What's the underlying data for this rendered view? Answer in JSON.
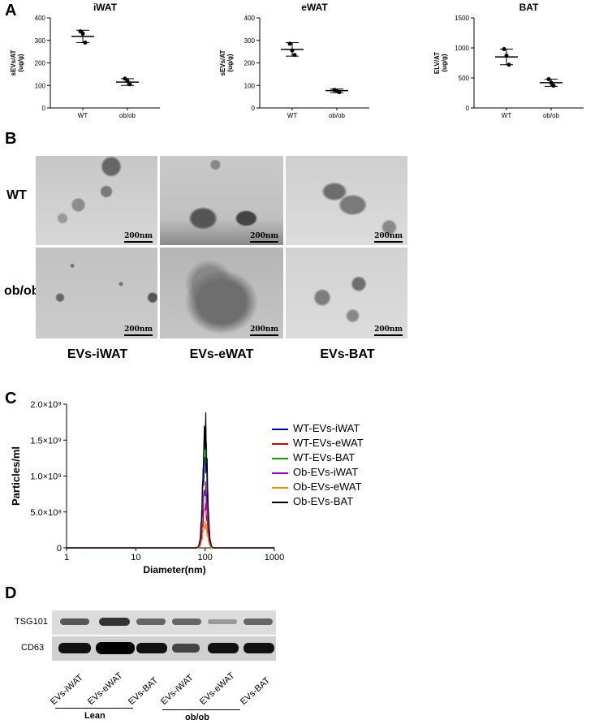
{
  "panels": {
    "a": "A",
    "b": "B",
    "c": "C",
    "d": "D"
  },
  "panel_a": [
    {
      "title": "iWAT",
      "ylabel_line1": "sEVs/AT",
      "ylabel_line2": "(ug/g)",
      "yticks": [
        "0",
        "100",
        "200",
        "300",
        "400"
      ],
      "categories": [
        "WT",
        "ob/ob"
      ]
    },
    {
      "title": "eWAT",
      "ylabel_line1": "sEVs/AT",
      "ylabel_line2": "(ug/g)",
      "yticks": [
        "0",
        "100",
        "200",
        "300",
        "400"
      ],
      "categories": [
        "WT",
        "ob/ob"
      ]
    },
    {
      "title": "BAT",
      "ylabel_line1": "ELV/AT",
      "ylabel_line2": "(ug/g)",
      "yticks": [
        "0",
        "500",
        "1000",
        "1500"
      ],
      "categories": [
        "WT",
        "ob/ob"
      ]
    }
  ],
  "panel_b": {
    "row_labels": [
      "WT",
      "ob/ob"
    ],
    "col_labels": [
      "EVs-iWAT",
      "EVs-eWAT",
      "EVs-BAT"
    ],
    "scale_bar": "200nm"
  },
  "panel_c": {
    "xlabel": "Diameter(nm)",
    "ylabel": "Particles/ml",
    "xticks": [
      "1",
      "10",
      "100",
      "1000"
    ],
    "yticks": [
      "0",
      "5.0×10⁸",
      "1.0×10⁹",
      "1.5×10⁹",
      "2.0×10⁹"
    ],
    "legend": [
      "WT-EVs-iWAT",
      "WT-EVs-eWAT",
      "WT-EVs-BAT",
      "Ob-EVs-iWAT",
      "Ob-EVs-eWAT",
      "Ob-EVs-BAT"
    ],
    "colors": [
      "#0000cc",
      "#e00000",
      "#00aa00",
      "#aa00cc",
      "#ff8800",
      "#000000"
    ]
  },
  "panel_d": {
    "proteins": [
      "TSG101",
      "CD63"
    ],
    "lanes": [
      "EVs-iWAT",
      "EVs-eWAT",
      "EVs-BAT",
      "EVs-iWAT",
      "EVs-eWAT",
      "EVs-BAT"
    ],
    "groups": [
      "Lean",
      "ob/ob"
    ]
  },
  "chart_data": [
    {
      "type": "scatter",
      "title": "iWAT",
      "ylabel": "sEVs/AT (ug/g)",
      "ylim": [
        0,
        400
      ],
      "categories": [
        "WT",
        "ob/ob"
      ],
      "points": [
        [
          340,
          330,
          290
        ],
        [
          130,
          120,
          105
        ]
      ],
      "mean": [
        318,
        115
      ],
      "error": [
        [
          290,
          345
        ],
        [
          100,
          130
        ]
      ]
    },
    {
      "type": "scatter",
      "title": "eWAT",
      "ylabel": "sEVs/AT (ug/g)",
      "ylim": [
        0,
        400
      ],
      "categories": [
        "WT",
        "ob/ob"
      ],
      "points": [
        [
          285,
          255,
          235
        ],
        [
          80,
          75,
          70
        ]
      ],
      "mean": [
        260,
        77
      ],
      "error": [
        [
          230,
          290
        ],
        [
          68,
          84
        ]
      ]
    },
    {
      "type": "scatter",
      "title": "BAT",
      "ylabel": "ELV/AT (ug/g)",
      "ylim": [
        0,
        1500
      ],
      "categories": [
        "WT",
        "ob/ob"
      ],
      "points": [
        [
          980,
          870,
          720
        ],
        [
          480,
          420,
          370
        ]
      ],
      "mean": [
        850,
        420
      ],
      "error": [
        [
          720,
          980
        ],
        [
          360,
          480
        ]
      ]
    },
    {
      "type": "line",
      "xlabel": "Diameter(nm)",
      "ylabel": "Particles/ml",
      "xscale": "log",
      "xlim": [
        1,
        1000
      ],
      "ylim": [
        0,
        2000000000
      ],
      "series": [
        {
          "name": "WT-EVs-iWAT",
          "peak_x": 100,
          "peak_y": 1500000000
        },
        {
          "name": "WT-EVs-eWAT",
          "peak_x": 100,
          "peak_y": 700000000
        },
        {
          "name": "WT-EVs-BAT",
          "peak_x": 100,
          "peak_y": 1800000000
        },
        {
          "name": "Ob-EVs-iWAT",
          "peak_x": 100,
          "peak_y": 1000000000
        },
        {
          "name": "Ob-EVs-eWAT",
          "peak_x": 100,
          "peak_y": 400000000
        },
        {
          "name": "Ob-EVs-BAT",
          "peak_x": 100,
          "peak_y": 2000000000
        }
      ]
    }
  ]
}
